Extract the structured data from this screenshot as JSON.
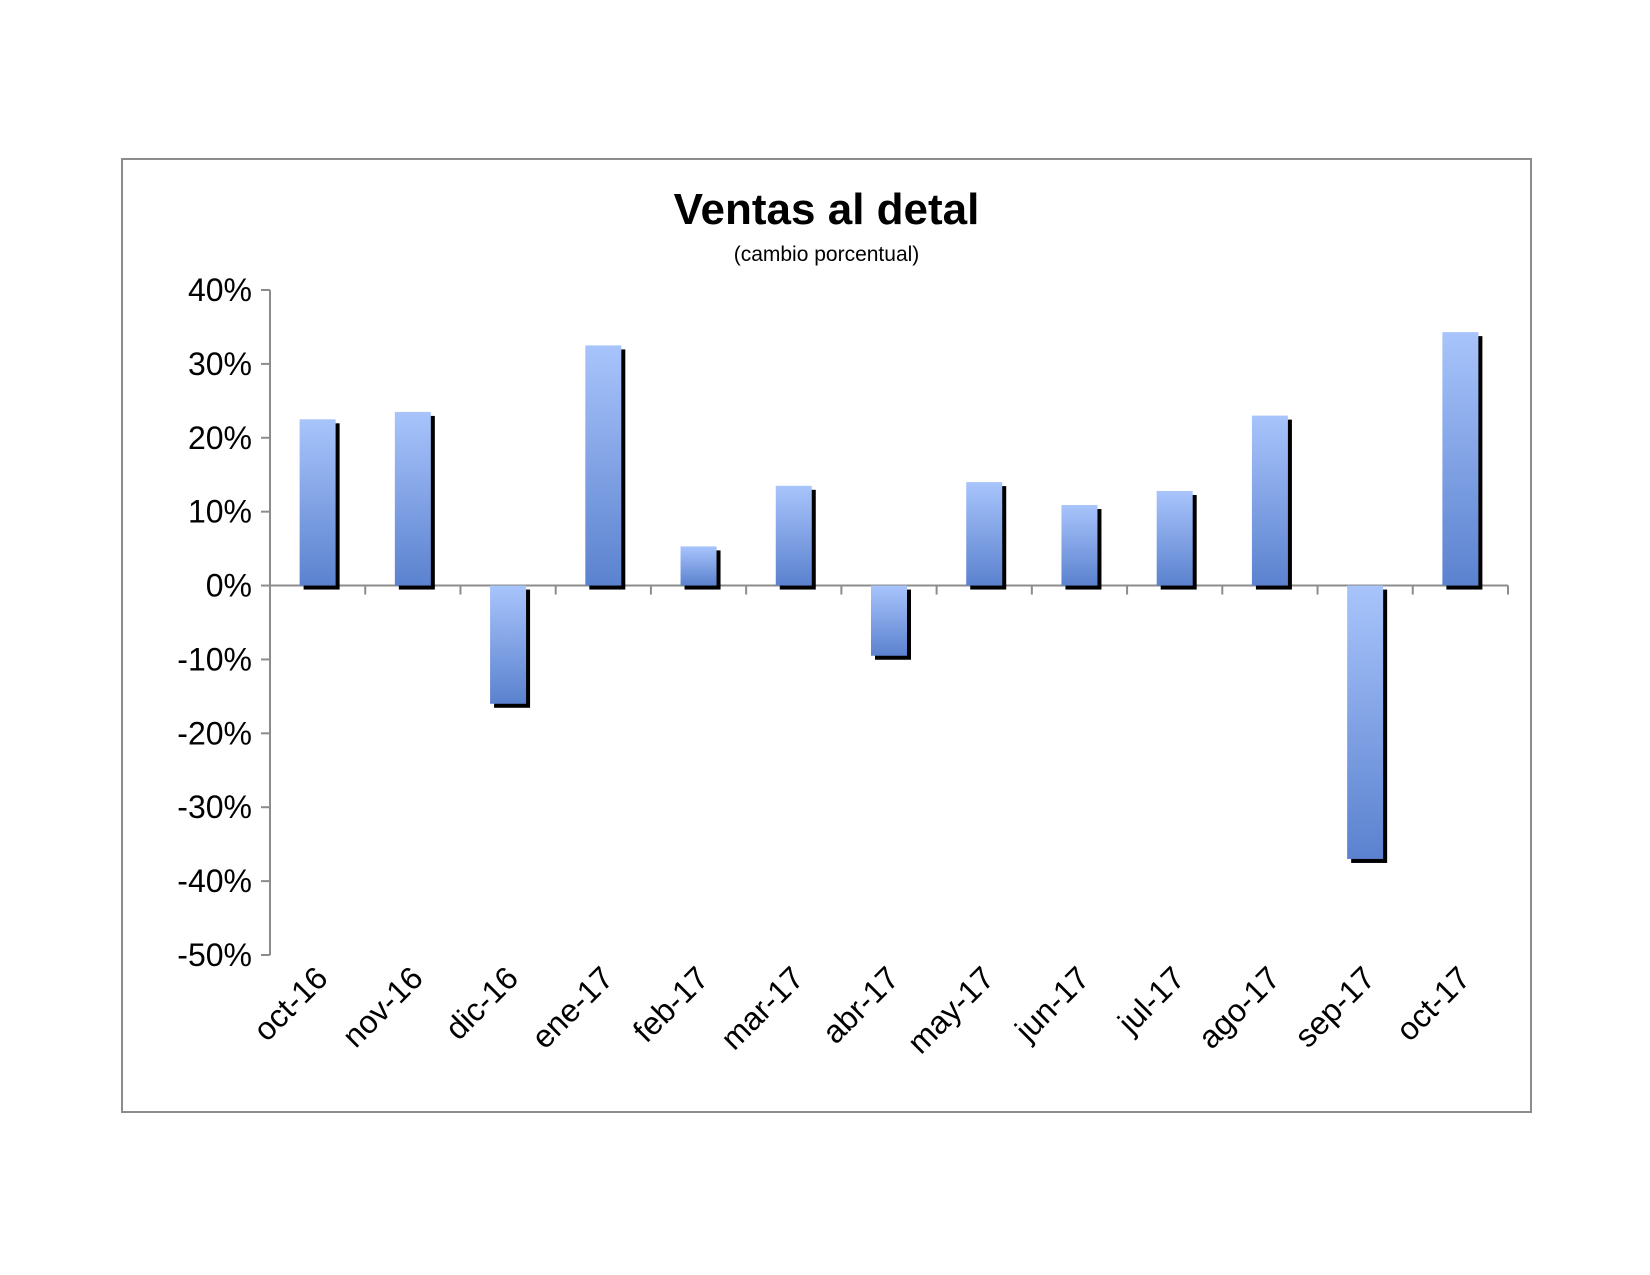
{
  "chart_data": {
    "type": "bar",
    "title": "Ventas al detal",
    "subtitle": "(cambio porcentual)",
    "categories": [
      "oct-16",
      "nov-16",
      "dic-16",
      "ene-17",
      "feb-17",
      "mar-17",
      "abr-17",
      "may-17",
      "jun-17",
      "jul-17",
      "ago-17",
      "sep-17",
      "oct-17"
    ],
    "values": [
      22.5,
      23.5,
      -16,
      32.5,
      5.3,
      13.5,
      -9.5,
      14,
      10.9,
      12.8,
      23,
      -37,
      34.3
    ],
    "ylim": [
      -50,
      40
    ],
    "yticks": [
      40,
      30,
      20,
      10,
      0,
      -10,
      -20,
      -30,
      -40,
      -50
    ],
    "ytick_labels": [
      "40%",
      "30%",
      "20%",
      "10%",
      "0%",
      "-10%",
      "-20%",
      "-30%",
      "-40%",
      "-50%"
    ],
    "xlabel": "",
    "ylabel": "",
    "grid": false,
    "legend": "none",
    "colors": {
      "bar_top": "#a8c4fb",
      "bar_bottom": "#5b82cf",
      "shadow": "#000000",
      "axis": "#8c8c8c"
    }
  }
}
